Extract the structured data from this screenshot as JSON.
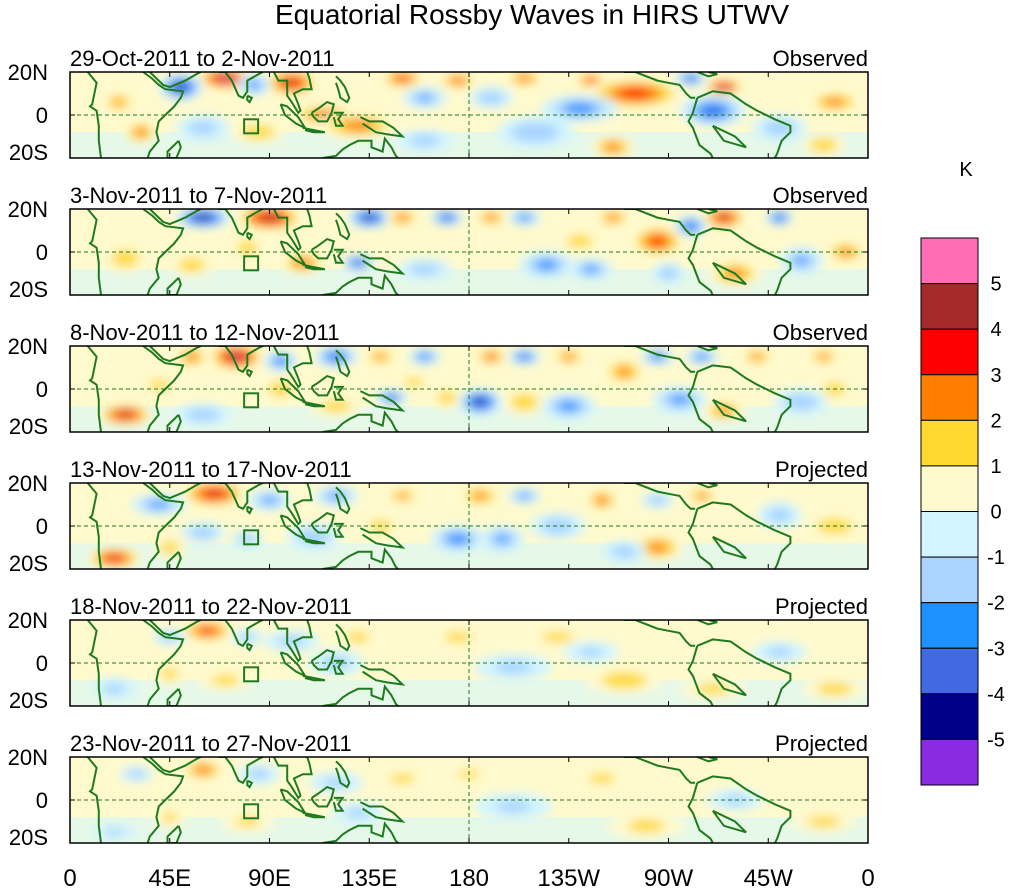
{
  "chart_data": {
    "type": "heatmap",
    "title": "Equatorial Rossby Waves in HIRS UTWV",
    "units_label": "K",
    "xlim": [
      0,
      360
    ],
    "ylim": [
      -20,
      20
    ],
    "x_ticks": [
      {
        "lon": 0,
        "label": "0"
      },
      {
        "lon": 45,
        "label": "45E"
      },
      {
        "lon": 90,
        "label": "90E"
      },
      {
        "lon": 135,
        "label": "135E"
      },
      {
        "lon": 180,
        "label": "180"
      },
      {
        "lon": 225,
        "label": "135W"
      },
      {
        "lon": 270,
        "label": "90W"
      },
      {
        "lon": 315,
        "label": "45W"
      },
      {
        "lon": 360,
        "label": "0"
      }
    ],
    "y_ticks": [
      {
        "lat": 20,
        "label": "20N"
      },
      {
        "lat": 0,
        "label": "0"
      },
      {
        "lat": -20,
        "label": "20S"
      }
    ],
    "colorbar": {
      "colors": [
        "#ff6eb4",
        "#a52a2a",
        "#ff0000",
        "#ff7f00",
        "#ffd92f",
        "#fffacd",
        "#d2f5ff",
        "#a8d4ff",
        "#1e90ff",
        "#4169e1",
        "#00008b",
        "#8a2be2"
      ],
      "labels": [
        "5",
        "4",
        "3",
        "2",
        "1",
        "0",
        "-1",
        "-2",
        "-3",
        "-4",
        "-5"
      ]
    },
    "panels": [
      {
        "period": "29-Oct-2011 to 2-Nov-2011",
        "kind": "Observed",
        "blobs": [
          [
            70,
            17,
            10,
            4,
            5.5
          ],
          [
            100,
            15,
            10,
            5,
            4.2
          ],
          [
            150,
            17,
            8,
            3.5,
            3.5
          ],
          [
            175,
            16,
            7,
            3,
            3.2
          ],
          [
            205,
            17,
            7,
            3,
            3.0
          ],
          [
            235,
            16,
            6,
            3,
            3.4
          ],
          [
            255,
            10,
            18,
            6,
            3.6
          ],
          [
            295,
            13,
            7,
            3,
            5.2
          ],
          [
            115,
            0,
            12,
            4,
            3.0
          ],
          [
            130,
            -5,
            15,
            5,
            2.6
          ],
          [
            32,
            -8,
            6,
            4,
            2.8
          ],
          [
            22,
            6,
            6,
            4,
            2.2
          ],
          [
            85,
            -8,
            10,
            4,
            2.0
          ],
          [
            245,
            -15,
            8,
            4,
            2.8
          ],
          [
            345,
            6,
            10,
            4,
            2.6
          ],
          [
            340,
            -14,
            8,
            4,
            2.0
          ],
          [
            50,
            13,
            8,
            5,
            -4.5
          ],
          [
            83,
            14,
            6,
            4,
            -2.5
          ],
          [
            160,
            8,
            8,
            4,
            -2.2
          ],
          [
            190,
            8,
            8,
            4,
            -2.0
          ],
          [
            230,
            3,
            14,
            5,
            -2.8
          ],
          [
            290,
            2,
            12,
            6,
            -3.4
          ],
          [
            210,
            -8,
            14,
            6,
            -2.0
          ],
          [
            320,
            -6,
            10,
            5,
            -1.8
          ],
          [
            60,
            -6,
            10,
            5,
            -1.5
          ],
          [
            280,
            17,
            6,
            3,
            -3.5
          ],
          [
            160,
            -12,
            10,
            4,
            -1.6
          ]
        ]
      },
      {
        "period": "3-Nov-2011 to 7-Nov-2011",
        "kind": "Observed",
        "blobs": [
          [
            90,
            16,
            12,
            5,
            4.8
          ],
          [
            60,
            16,
            10,
            4,
            -5.0
          ],
          [
            135,
            16,
            8,
            4,
            -4.5
          ],
          [
            150,
            16,
            6,
            3,
            3.0
          ],
          [
            170,
            16,
            6,
            3,
            -4.0
          ],
          [
            190,
            16,
            6,
            3,
            2.8
          ],
          [
            205,
            16,
            6,
            3,
            -2.8
          ],
          [
            265,
            5,
            10,
            6,
            3.4
          ],
          [
            245,
            16,
            6,
            3,
            3.0
          ],
          [
            295,
            16,
            8,
            4,
            4.5
          ],
          [
            280,
            12,
            6,
            4,
            -3.5
          ],
          [
            320,
            16,
            5,
            3,
            -4.0
          ],
          [
            105,
            -5,
            8,
            4,
            3.0
          ],
          [
            130,
            -5,
            6,
            3,
            -4.0
          ],
          [
            25,
            -3,
            8,
            5,
            2.0
          ],
          [
            55,
            -6,
            8,
            4,
            2.0
          ],
          [
            80,
            2,
            6,
            4,
            2.0
          ],
          [
            300,
            -10,
            10,
            5,
            2.5
          ],
          [
            350,
            0,
            8,
            4,
            2.5
          ],
          [
            215,
            -6,
            10,
            5,
            -2.6
          ],
          [
            235,
            -8,
            8,
            4,
            -2.4
          ],
          [
            330,
            -4,
            8,
            5,
            -2.2
          ],
          [
            270,
            -10,
            6,
            4,
            -2.0
          ],
          [
            160,
            -8,
            10,
            4,
            -1.6
          ],
          [
            230,
            5,
            8,
            4,
            1.8
          ]
        ]
      },
      {
        "period": "8-Nov-2011 to 12-Nov-2011",
        "kind": "Observed",
        "blobs": [
          [
            75,
            15,
            10,
            5,
            5.2
          ],
          [
            55,
            15,
            6,
            4,
            2.8
          ],
          [
            95,
            13,
            6,
            4,
            -3.0
          ],
          [
            120,
            15,
            8,
            4,
            -3.5
          ],
          [
            140,
            15,
            6,
            3,
            2.6
          ],
          [
            160,
            15,
            6,
            3,
            -3.0
          ],
          [
            190,
            15,
            6,
            3,
            3.2
          ],
          [
            205,
            15,
            6,
            3,
            -3.5
          ],
          [
            225,
            15,
            6,
            3,
            2.8
          ],
          [
            250,
            8,
            8,
            5,
            2.4
          ],
          [
            265,
            15,
            6,
            3,
            -3.2
          ],
          [
            285,
            15,
            6,
            3,
            -3.0
          ],
          [
            310,
            15,
            6,
            3,
            2.6
          ],
          [
            340,
            15,
            6,
            3,
            2.5
          ],
          [
            25,
            -12,
            10,
            4,
            4.5
          ],
          [
            40,
            2,
            6,
            3,
            2.0
          ],
          [
            145,
            -4,
            6,
            3,
            -3.5
          ],
          [
            155,
            3,
            6,
            3,
            1.8
          ],
          [
            170,
            -4,
            6,
            4,
            1.8
          ],
          [
            185,
            -6,
            8,
            5,
            -4.5
          ],
          [
            205,
            -6,
            8,
            5,
            2.0
          ],
          [
            225,
            -8,
            10,
            5,
            -2.6
          ],
          [
            275,
            -5,
            10,
            5,
            -2.4
          ],
          [
            295,
            -10,
            8,
            4,
            2.4
          ],
          [
            330,
            -6,
            10,
            5,
            -2.0
          ],
          [
            345,
            0,
            6,
            4,
            2.0
          ],
          [
            120,
            -8,
            10,
            4,
            1.6
          ],
          [
            60,
            -12,
            10,
            4,
            -2.0
          ],
          [
            95,
            0,
            8,
            5,
            1.6
          ]
        ]
      },
      {
        "period": "13-Nov-2011 to 17-Nov-2011",
        "kind": "Projected",
        "blobs": [
          [
            65,
            15,
            12,
            5,
            4.2
          ],
          [
            40,
            10,
            10,
            4,
            -2.4
          ],
          [
            90,
            12,
            8,
            4,
            -2.2
          ],
          [
            120,
            14,
            8,
            4,
            -2.2
          ],
          [
            150,
            14,
            6,
            3,
            2.4
          ],
          [
            185,
            14,
            8,
            4,
            2.4
          ],
          [
            205,
            14,
            6,
            3,
            -2.4
          ],
          [
            240,
            12,
            6,
            4,
            2.8
          ],
          [
            265,
            12,
            6,
            3,
            -2.0
          ],
          [
            285,
            14,
            6,
            3,
            2.5
          ],
          [
            20,
            -15,
            10,
            4,
            4.2
          ],
          [
            45,
            -10,
            6,
            4,
            1.8
          ],
          [
            60,
            -3,
            8,
            4,
            -2.0
          ],
          [
            80,
            -6,
            6,
            3,
            -2.0
          ],
          [
            110,
            -5,
            10,
            5,
            -1.8
          ],
          [
            175,
            -6,
            10,
            5,
            -2.8
          ],
          [
            195,
            -6,
            8,
            5,
            -2.2
          ],
          [
            220,
            0,
            10,
            5,
            -1.8
          ],
          [
            265,
            -10,
            10,
            5,
            2.6
          ],
          [
            250,
            -12,
            8,
            4,
            -1.8
          ],
          [
            345,
            0,
            12,
            5,
            1.6
          ],
          [
            320,
            5,
            8,
            5,
            -1.6
          ],
          [
            140,
            0,
            8,
            4,
            1.5
          ]
        ]
      },
      {
        "period": "18-Nov-2011 to 22-Nov-2011",
        "kind": "Projected",
        "blobs": [
          [
            62,
            15,
            10,
            4,
            3.6
          ],
          [
            45,
            12,
            6,
            3,
            -1.8
          ],
          [
            80,
            12,
            6,
            3,
            -1.5
          ],
          [
            100,
            10,
            10,
            4,
            -1.5
          ],
          [
            130,
            12,
            8,
            4,
            1.4
          ],
          [
            175,
            12,
            10,
            4,
            1.4
          ],
          [
            220,
            12,
            12,
            4,
            1.3
          ],
          [
            45,
            -5,
            6,
            4,
            1.5
          ],
          [
            70,
            -8,
            10,
            4,
            1.4
          ],
          [
            120,
            0,
            10,
            5,
            -1.4
          ],
          [
            200,
            -2,
            14,
            5,
            -1.3
          ],
          [
            250,
            -8,
            14,
            5,
            1.8
          ],
          [
            290,
            -12,
            12,
            4,
            1.4
          ],
          [
            345,
            -12,
            12,
            4,
            1.6
          ],
          [
            320,
            5,
            10,
            4,
            -1.3
          ],
          [
            20,
            -12,
            8,
            4,
            -1.4
          ],
          [
            235,
            5,
            10,
            4,
            -1.2
          ]
        ]
      },
      {
        "period": "23-Nov-2011 to 27-Nov-2011",
        "kind": "Projected",
        "blobs": [
          [
            60,
            14,
            8,
            4,
            2.8
          ],
          [
            30,
            12,
            6,
            3,
            -1.6
          ],
          [
            85,
            12,
            8,
            4,
            -1.4
          ],
          [
            120,
            8,
            10,
            4,
            -1.3
          ],
          [
            150,
            10,
            10,
            4,
            1.2
          ],
          [
            180,
            12,
            8,
            3,
            1.4
          ],
          [
            240,
            10,
            10,
            4,
            1.3
          ],
          [
            45,
            -8,
            6,
            4,
            1.3
          ],
          [
            80,
            -10,
            10,
            4,
            1.2
          ],
          [
            130,
            -6,
            10,
            4,
            -1.2
          ],
          [
            200,
            -3,
            14,
            5,
            -1.2
          ],
          [
            260,
            -12,
            14,
            5,
            1.3
          ],
          [
            300,
            0,
            10,
            4,
            -1.2
          ],
          [
            340,
            -10,
            12,
            4,
            1.4
          ],
          [
            20,
            -15,
            8,
            3,
            -1.2
          ]
        ]
      }
    ]
  }
}
